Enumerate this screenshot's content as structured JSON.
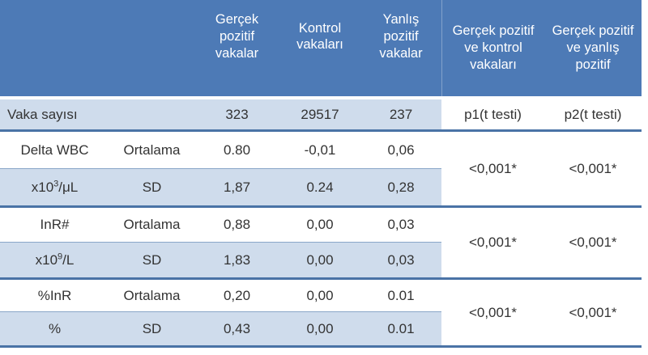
{
  "colors": {
    "header_bg": "#4d7ab6",
    "row_alt": "#cfdcec",
    "separator": "#4a73a6",
    "thin_line": "#8aa6c8",
    "text": "#333333"
  },
  "header": {
    "true_positive": "Gerçek pozitif vakalar",
    "control": "Kontrol vakaları",
    "false_positive": "Yanlış pozitif vakalar",
    "tp_vs_control": "Gerçek pozitif ve kontrol vakaları",
    "tp_vs_fp": "Gerçek pozitif ve yanlış pozitif"
  },
  "counts": {
    "label": "Vaka sayısı",
    "true_positive": "323",
    "control": "29517",
    "false_positive": "237",
    "p1": "p1(t testi)",
    "p2": "p2(t testi)"
  },
  "labels": {
    "mean": "Ortalama",
    "sd": "SD"
  },
  "groups": [
    {
      "param": "Delta WBC",
      "unit_base": "x10",
      "unit_sup": "3",
      "unit_rest": "/μL",
      "mean": [
        "0.80",
        "-0,01",
        "0,06"
      ],
      "sd": [
        "1,87",
        "0.24",
        "0,28"
      ],
      "p1": "<0,001*",
      "p2": "<0,001*"
    },
    {
      "param": "InR#",
      "unit_base": "x10",
      "unit_sup": "9",
      "unit_rest": "/L",
      "mean": [
        "0,88",
        "0,00",
        "0,03"
      ],
      "sd": [
        "1,83",
        "0,00",
        "0,03"
      ],
      "p1": "<0,001*",
      "p2": "<0,001*"
    },
    {
      "param": "%InR",
      "unit_base": "%",
      "unit_sup": "",
      "unit_rest": "",
      "mean": [
        "0,20",
        "0,00",
        "0.01"
      ],
      "sd": [
        "0,43",
        "0,00",
        "0.01"
      ],
      "p1": "<0,001*",
      "p2": "<0,001*"
    }
  ],
  "chart_data": {
    "type": "table",
    "columns": [
      "",
      "",
      "Gerçek pozitif vakalar",
      "Kontrol vakaları",
      "Yanlış pozitif vakalar",
      "Gerçek pozitif ve kontrol vakaları",
      "Gerçek pozitif ve yanlış pozitif"
    ],
    "rows": [
      [
        "Vaka sayısı",
        "",
        "323",
        "29517",
        "237",
        "p1(t testi)",
        "p2(t testi)"
      ],
      [
        "Delta WBC",
        "Ortalama",
        "0.80",
        "-0,01",
        "0,06",
        "<0,001*",
        "<0,001*"
      ],
      [
        "x10³/μL",
        "SD",
        "1,87",
        "0.24",
        "0,28",
        "",
        ""
      ],
      [
        "InR#",
        "Ortalama",
        "0,88",
        "0,00",
        "0,03",
        "<0,001*",
        "<0,001*"
      ],
      [
        "x10⁹/L",
        "SD",
        "1,83",
        "0,00",
        "0,03",
        "",
        ""
      ],
      [
        "%InR",
        "Ortalama",
        "0,20",
        "0,00",
        "0.01",
        "<0,001*",
        "<0,001*"
      ],
      [
        "%",
        "SD",
        "0,43",
        "0,00",
        "0.01",
        "",
        ""
      ]
    ]
  }
}
